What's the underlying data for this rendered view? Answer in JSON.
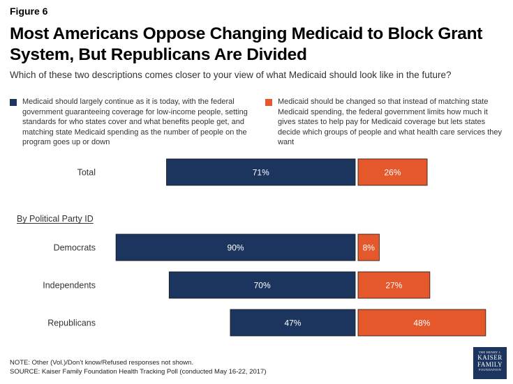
{
  "figure_label": "Figure 6",
  "title": "Most Americans Oppose Changing Medicaid to Block Grant System, But Republicans Are Divided",
  "subtitle": "Which of these two descriptions comes closer to your view of what Medicaid should look like in the future?",
  "colors": {
    "series_a": "#1c355e",
    "series_b": "#e4582b"
  },
  "chart_data": {
    "type": "bar",
    "orientation": "horizontal-diverging",
    "categories": [
      "Total",
      "Democrats",
      "Independents",
      "Republicans"
    ],
    "group_label": "By Political Party ID",
    "series": [
      {
        "name": "Medicaid should largely continue as it is today, with the federal government guaranteeing coverage for low-income people, setting standards for who states cover and what benefits people get, and matching state Medicaid spending as the number of people on the program goes up or down",
        "values": [
          71,
          90,
          70,
          47
        ],
        "labels": [
          "71%",
          "90%",
          "70%",
          "47%"
        ]
      },
      {
        "name": "Medicaid should be changed so that instead of matching state Medicaid spending, the federal government limits how much it gives states to help pay for Medicaid coverage but lets states decide which groups of people and what health care services they want",
        "values": [
          26,
          8,
          27,
          48
        ],
        "labels": [
          "26%",
          "8%",
          "27%",
          "48%"
        ]
      }
    ]
  },
  "notes": {
    "note": "NOTE: Other (Vol.)/Don’t know/Refused responses not shown.",
    "source": "SOURCE: Kaiser Family Foundation Health Tracking Poll (conducted May 16-22, 2017)"
  },
  "logo": {
    "line1": "THE HENRY J.",
    "line2": "KAISER",
    "line3": "FAMILY",
    "line4": "FOUNDATION"
  }
}
